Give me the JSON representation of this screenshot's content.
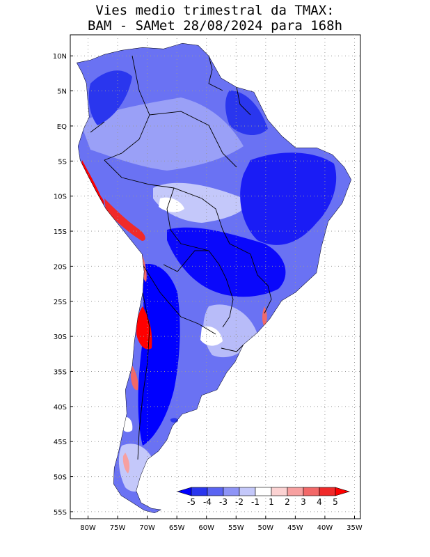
{
  "title": {
    "line1": "Vies medio trimestral da TMAX:",
    "line2": "BAM - SAMet 28/08/2024  para 168h"
  },
  "map": {
    "lon_range": [
      -83,
      -34
    ],
    "lat_range": [
      -56,
      13
    ],
    "grid": "dotted",
    "lat_ticks": [
      {
        "lat": 10,
        "label": "10N"
      },
      {
        "lat": 5,
        "label": "5N"
      },
      {
        "lat": 0,
        "label": "EQ"
      },
      {
        "lat": -5,
        "label": "5S"
      },
      {
        "lat": -10,
        "label": "10S"
      },
      {
        "lat": -15,
        "label": "15S"
      },
      {
        "lat": -20,
        "label": "20S"
      },
      {
        "lat": -25,
        "label": "25S"
      },
      {
        "lat": -30,
        "label": "30S"
      },
      {
        "lat": -35,
        "label": "35S"
      },
      {
        "lat": -40,
        "label": "40S"
      },
      {
        "lat": -45,
        "label": "45S"
      },
      {
        "lat": -50,
        "label": "50S"
      },
      {
        "lat": -55,
        "label": "55S"
      }
    ],
    "lon_ticks": [
      {
        "lon": -80,
        "label": "80W"
      },
      {
        "lon": -75,
        "label": "75W"
      },
      {
        "lon": -70,
        "label": "70W"
      },
      {
        "lon": -65,
        "label": "65W"
      },
      {
        "lon": -60,
        "label": "60W"
      },
      {
        "lon": -55,
        "label": "55W"
      },
      {
        "lon": -50,
        "label": "50W"
      },
      {
        "lon": -45,
        "label": "45W"
      },
      {
        "lon": -40,
        "label": "40W"
      },
      {
        "lon": -35,
        "label": "35W"
      }
    ]
  },
  "colorbar": {
    "labels": [
      "-5",
      "-4",
      "-3",
      "-2",
      "-1",
      "1",
      "2",
      "3",
      "4",
      "5"
    ],
    "colors": [
      "#0000ff",
      "#2a36ee",
      "#5a64f2",
      "#8e94f6",
      "#c4c8fa",
      "#ffffff",
      "#fbd2d2",
      "#f7a0a0",
      "#f26868",
      "#f02a2a",
      "#ff0000"
    ]
  }
}
